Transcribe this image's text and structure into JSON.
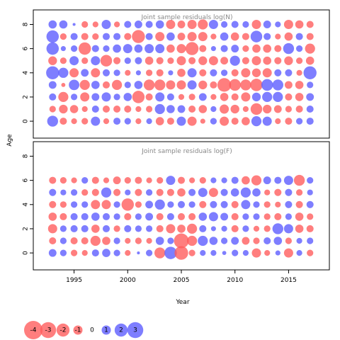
{
  "colors": {
    "negative": "#ff5a5a",
    "positive": "#5a5aff",
    "frame": "#000000",
    "title": "#888888"
  },
  "chart_data": {
    "type": "scatter",
    "encoding": "bubble: area proportional to |residual|, red = negative, blue = positive",
    "xlabel": "Year",
    "ylabel": "Age",
    "xlim": [
      1991.2,
      2018.8
    ],
    "x_ticks": [
      "1995",
      "2000",
      "2005",
      "2010",
      "2015"
    ],
    "panels": [
      {
        "title": "Joint sample residuals log(N)",
        "ylim": [
          -1.4,
          9.2
        ],
        "y_ticks": [
          "0",
          "2",
          "4",
          "6",
          "8"
        ],
        "years": [
          1993,
          1994,
          1995,
          1996,
          1997,
          1998,
          1999,
          2000,
          2001,
          2002,
          2003,
          2004,
          2005,
          2006,
          2007,
          2008,
          2009,
          2010,
          2011,
          2012,
          2013,
          2014,
          2015,
          2016,
          2017
        ],
        "ages": [
          0,
          1,
          2,
          3,
          4,
          5,
          6,
          7,
          8
        ],
        "residuals": [
          [
            1.4,
            -0.6,
            -0.4,
            -0.5,
            1.0,
            -0.4,
            0.6,
            0.5,
            -0.4,
            0.4,
            -0.8,
            -0.6,
            1.0,
            -1.0,
            -0.3,
            0.5,
            -1.0,
            -0.6,
            -0.8,
            1.2,
            1.0,
            -0.4,
            -0.6,
            0.5,
            0.6
          ],
          [
            -0.5,
            -0.9,
            -0.8,
            -0.4,
            0.6,
            -0.6,
            -0.6,
            -0.6,
            -0.4,
            -0.5,
            1.2,
            0.8,
            0.7,
            -0.6,
            -0.8,
            0.4,
            -1.0,
            -0.9,
            -0.4,
            -1.6,
            -0.9,
            -0.7,
            -0.5,
            -0.6,
            0.6
          ],
          [
            0.6,
            -1.2,
            0.5,
            -1.0,
            0.7,
            1.0,
            0.5,
            0.8,
            -1.8,
            -0.6,
            1.0,
            0.6,
            -0.4,
            -0.5,
            0.7,
            -0.4,
            -0.8,
            -0.6,
            -1.0,
            0.9,
            1.2,
            1.2,
            -0.6,
            -0.8,
            0.7
          ],
          [
            0.7,
            -0.2,
            1.3,
            -1.2,
            0.8,
            -0.6,
            -1.2,
            0.5,
            0.8,
            -1.4,
            -1.4,
            -1.0,
            -1.0,
            1.0,
            -0.9,
            -0.6,
            -2.2,
            -1.6,
            -1.4,
            -1.8,
            1.6,
            1.4,
            -0.7,
            -0.8,
            0.5
          ],
          [
            2.0,
            1.2,
            -1.0,
            0.7,
            -1.0,
            0.6,
            0.5,
            -0.4,
            0.3,
            -0.5,
            -0.6,
            0.3,
            -0.8,
            1.0,
            -0.6,
            0.6,
            0.5,
            -0.6,
            -1.0,
            -0.9,
            -1.0,
            0.6,
            0.6,
            -0.4,
            2.0
          ],
          [
            -0.9,
            -0.5,
            1.0,
            -0.5,
            1.0,
            -1.6,
            -0.6,
            0.5,
            0.6,
            -0.8,
            -0.6,
            -0.5,
            -1.0,
            -0.6,
            -0.9,
            -1.0,
            -0.7,
            1.2,
            -0.6,
            -1.0,
            -0.8,
            -0.6,
            -0.9,
            -0.5,
            -0.8
          ],
          [
            1.8,
            0.3,
            0.5,
            -1.8,
            0.6,
            0.5,
            0.8,
            1.0,
            0.8,
            1.0,
            1.0,
            -0.8,
            -1.0,
            -2.0,
            -0.6,
            0.3,
            0.6,
            0.7,
            -0.5,
            -0.8,
            -0.8,
            -0.6,
            1.4,
            0.5,
            -1.2
          ],
          [
            1.8,
            -0.5,
            0.6,
            -0.6,
            -0.5,
            0.6,
            0.6,
            -0.6,
            -2.0,
            0.6,
            -1.0,
            0.8,
            -0.7,
            -1.0,
            -1.0,
            -0.4,
            0.8,
            -0.8,
            -0.6,
            1.6,
            0.6,
            -0.4,
            -0.8,
            0.6,
            -0.6
          ],
          [
            0.8,
            0.8,
            0.1,
            -0.5,
            -0.4,
            1.0,
            -0.4,
            0.6,
            0.7,
            0.6,
            0.8,
            -1.0,
            -0.7,
            -1.0,
            -1.2,
            1.0,
            0.5,
            0.6,
            0.5,
            -1.0,
            0.7,
            0.4,
            -1.0,
            -0.8,
            -0.6
          ]
        ]
      },
      {
        "title": "Joint sample residuals log(F)",
        "ylim": [
          -1.4,
          9.2
        ],
        "y_ticks": [
          "0",
          "2",
          "4",
          "6",
          "8"
        ],
        "years": [
          1993,
          1994,
          1995,
          1996,
          1997,
          1998,
          1999,
          2000,
          2001,
          2002,
          2003,
          2004,
          2005,
          2006,
          2007,
          2008,
          2009,
          2010,
          2011,
          2012,
          2013,
          2014,
          2015,
          2016,
          2017
        ],
        "ages": [
          0,
          1,
          2,
          3,
          4,
          5,
          6
        ],
        "residuals": [
          [
            0.7,
            0.5,
            -0.5,
            -0.4,
            0.6,
            0.8,
            0.5,
            -0.4,
            0.1,
            0.5,
            -1.4,
            1.8,
            -2.2,
            -0.5,
            0.4,
            0.4,
            0.2,
            0.5,
            0.4,
            -1.0,
            -0.4,
            0.3,
            -1.0,
            0.4,
            -0.5
          ],
          [
            -0.6,
            0.5,
            -0.6,
            -0.6,
            -1.2,
            -0.8,
            0.5,
            -0.4,
            -0.5,
            -0.4,
            0.8,
            0.5,
            -2.6,
            -1.2,
            1.2,
            0.8,
            0.5,
            0.7,
            -0.7,
            -0.5,
            0.6,
            0.8,
            -0.5,
            0.4,
            0.5
          ],
          [
            -1.0,
            0.5,
            0.6,
            0.6,
            -0.8,
            0.6,
            -0.5,
            0.6,
            0.5,
            0.5,
            -0.6,
            -1.0,
            -0.8,
            -1.2,
            0.6,
            0.3,
            0.4,
            -0.6,
            0.5,
            -0.4,
            -0.5,
            1.4,
            1.0,
            -0.8,
            -0.6
          ],
          [
            -0.8,
            -0.6,
            0.6,
            0.6,
            0.8,
            0.6,
            0.5,
            -0.6,
            0.5,
            0.7,
            -0.6,
            0.6,
            -0.6,
            -0.6,
            0.8,
            1.0,
            0.7,
            -0.6,
            0.5,
            0.5,
            -0.5,
            -0.6,
            0.5,
            -0.8,
            -0.5
          ],
          [
            -0.6,
            -0.5,
            0.5,
            0.5,
            -1.0,
            -1.0,
            0.5,
            -1.8,
            -0.5,
            0.7,
            1.2,
            0.5,
            0.6,
            0.5,
            -0.6,
            0.6,
            0.6,
            -0.6,
            1.0,
            0.5,
            -0.5,
            -0.4,
            0.6,
            -0.6,
            0.6
          ],
          [
            0.6,
            0.4,
            0.5,
            -0.5,
            -0.6,
            1.2,
            -0.6,
            0.4,
            -0.6,
            0.5,
            -0.6,
            -0.6,
            -0.8,
            0.6,
            1.0,
            -1.0,
            0.6,
            0.8,
            1.2,
            0.8,
            -0.4,
            -0.6,
            0.6,
            -0.5,
            0.4
          ],
          [
            -0.6,
            -0.5,
            -0.4,
            0.5,
            -0.6,
            -0.4,
            -0.7,
            -0.5,
            -0.6,
            -0.4,
            -0.5,
            1.0,
            -0.6,
            -0.4,
            -0.5,
            0.4,
            0.4,
            0.6,
            -0.8,
            -1.2,
            0.7,
            0.6,
            1.0,
            -1.4,
            0.5
          ]
        ]
      }
    ],
    "legend": {
      "labels": [
        "-4",
        "-3",
        "-2",
        "-1",
        "0",
        "1",
        "2",
        "3"
      ],
      "values": [
        -4,
        -3,
        -2,
        -1,
        0,
        1,
        2,
        3
      ],
      "placement": "bottom-left"
    }
  }
}
